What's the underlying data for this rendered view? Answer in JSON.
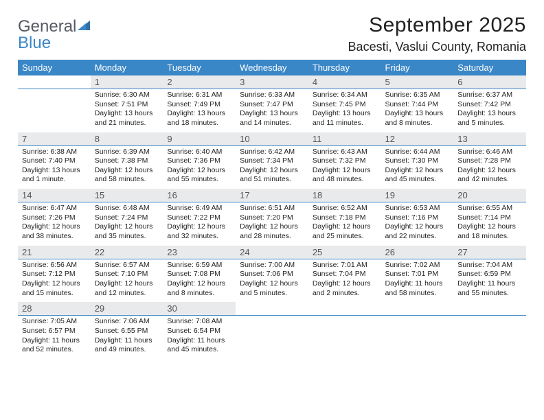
{
  "brand": {
    "part1": "General",
    "part2": "Blue"
  },
  "title": "September 2025",
  "location": "Bacesti, Vaslui County, Romania",
  "header_bg": "#3a87c8",
  "daynum_bg": "#e9eaec",
  "text_color": "#222222",
  "weekdays": [
    "Sunday",
    "Monday",
    "Tuesday",
    "Wednesday",
    "Thursday",
    "Friday",
    "Saturday"
  ],
  "weeks": [
    {
      "days": [
        null,
        {
          "n": "1",
          "sr": "Sunrise: 6:30 AM",
          "ss": "Sunset: 7:51 PM",
          "dl": "Daylight: 13 hours and 21 minutes."
        },
        {
          "n": "2",
          "sr": "Sunrise: 6:31 AM",
          "ss": "Sunset: 7:49 PM",
          "dl": "Daylight: 13 hours and 18 minutes."
        },
        {
          "n": "3",
          "sr": "Sunrise: 6:33 AM",
          "ss": "Sunset: 7:47 PM",
          "dl": "Daylight: 13 hours and 14 minutes."
        },
        {
          "n": "4",
          "sr": "Sunrise: 6:34 AM",
          "ss": "Sunset: 7:45 PM",
          "dl": "Daylight: 13 hours and 11 minutes."
        },
        {
          "n": "5",
          "sr": "Sunrise: 6:35 AM",
          "ss": "Sunset: 7:44 PM",
          "dl": "Daylight: 13 hours and 8 minutes."
        },
        {
          "n": "6",
          "sr": "Sunrise: 6:37 AM",
          "ss": "Sunset: 7:42 PM",
          "dl": "Daylight: 13 hours and 5 minutes."
        }
      ]
    },
    {
      "days": [
        {
          "n": "7",
          "sr": "Sunrise: 6:38 AM",
          "ss": "Sunset: 7:40 PM",
          "dl": "Daylight: 13 hours and 1 minute."
        },
        {
          "n": "8",
          "sr": "Sunrise: 6:39 AM",
          "ss": "Sunset: 7:38 PM",
          "dl": "Daylight: 12 hours and 58 minutes."
        },
        {
          "n": "9",
          "sr": "Sunrise: 6:40 AM",
          "ss": "Sunset: 7:36 PM",
          "dl": "Daylight: 12 hours and 55 minutes."
        },
        {
          "n": "10",
          "sr": "Sunrise: 6:42 AM",
          "ss": "Sunset: 7:34 PM",
          "dl": "Daylight: 12 hours and 51 minutes."
        },
        {
          "n": "11",
          "sr": "Sunrise: 6:43 AM",
          "ss": "Sunset: 7:32 PM",
          "dl": "Daylight: 12 hours and 48 minutes."
        },
        {
          "n": "12",
          "sr": "Sunrise: 6:44 AM",
          "ss": "Sunset: 7:30 PM",
          "dl": "Daylight: 12 hours and 45 minutes."
        },
        {
          "n": "13",
          "sr": "Sunrise: 6:46 AM",
          "ss": "Sunset: 7:28 PM",
          "dl": "Daylight: 12 hours and 42 minutes."
        }
      ]
    },
    {
      "days": [
        {
          "n": "14",
          "sr": "Sunrise: 6:47 AM",
          "ss": "Sunset: 7:26 PM",
          "dl": "Daylight: 12 hours and 38 minutes."
        },
        {
          "n": "15",
          "sr": "Sunrise: 6:48 AM",
          "ss": "Sunset: 7:24 PM",
          "dl": "Daylight: 12 hours and 35 minutes."
        },
        {
          "n": "16",
          "sr": "Sunrise: 6:49 AM",
          "ss": "Sunset: 7:22 PM",
          "dl": "Daylight: 12 hours and 32 minutes."
        },
        {
          "n": "17",
          "sr": "Sunrise: 6:51 AM",
          "ss": "Sunset: 7:20 PM",
          "dl": "Daylight: 12 hours and 28 minutes."
        },
        {
          "n": "18",
          "sr": "Sunrise: 6:52 AM",
          "ss": "Sunset: 7:18 PM",
          "dl": "Daylight: 12 hours and 25 minutes."
        },
        {
          "n": "19",
          "sr": "Sunrise: 6:53 AM",
          "ss": "Sunset: 7:16 PM",
          "dl": "Daylight: 12 hours and 22 minutes."
        },
        {
          "n": "20",
          "sr": "Sunrise: 6:55 AM",
          "ss": "Sunset: 7:14 PM",
          "dl": "Daylight: 12 hours and 18 minutes."
        }
      ]
    },
    {
      "days": [
        {
          "n": "21",
          "sr": "Sunrise: 6:56 AM",
          "ss": "Sunset: 7:12 PM",
          "dl": "Daylight: 12 hours and 15 minutes."
        },
        {
          "n": "22",
          "sr": "Sunrise: 6:57 AM",
          "ss": "Sunset: 7:10 PM",
          "dl": "Daylight: 12 hours and 12 minutes."
        },
        {
          "n": "23",
          "sr": "Sunrise: 6:59 AM",
          "ss": "Sunset: 7:08 PM",
          "dl": "Daylight: 12 hours and 8 minutes."
        },
        {
          "n": "24",
          "sr": "Sunrise: 7:00 AM",
          "ss": "Sunset: 7:06 PM",
          "dl": "Daylight: 12 hours and 5 minutes."
        },
        {
          "n": "25",
          "sr": "Sunrise: 7:01 AM",
          "ss": "Sunset: 7:04 PM",
          "dl": "Daylight: 12 hours and 2 minutes."
        },
        {
          "n": "26",
          "sr": "Sunrise: 7:02 AM",
          "ss": "Sunset: 7:01 PM",
          "dl": "Daylight: 11 hours and 58 minutes."
        },
        {
          "n": "27",
          "sr": "Sunrise: 7:04 AM",
          "ss": "Sunset: 6:59 PM",
          "dl": "Daylight: 11 hours and 55 minutes."
        }
      ]
    },
    {
      "days": [
        {
          "n": "28",
          "sr": "Sunrise: 7:05 AM",
          "ss": "Sunset: 6:57 PM",
          "dl": "Daylight: 11 hours and 52 minutes."
        },
        {
          "n": "29",
          "sr": "Sunrise: 7:06 AM",
          "ss": "Sunset: 6:55 PM",
          "dl": "Daylight: 11 hours and 49 minutes."
        },
        {
          "n": "30",
          "sr": "Sunrise: 7:08 AM",
          "ss": "Sunset: 6:54 PM",
          "dl": "Daylight: 11 hours and 45 minutes."
        },
        null,
        null,
        null,
        null
      ]
    }
  ]
}
